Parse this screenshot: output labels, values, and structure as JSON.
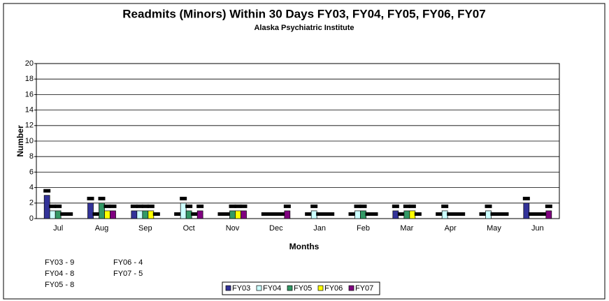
{
  "chart_data": {
    "type": "bar",
    "title": "Readmits (Minors) Within 30 Days FY03, FY04, FY05, FY06, FY07",
    "subtitle": "Alaska Psychiatric Institute",
    "x_label": "Months",
    "y_label": "Number",
    "categories": [
      "Jul",
      "Aug",
      "Sep",
      "Oct",
      "Nov",
      "Dec",
      "Jan",
      "Feb",
      "Mar",
      "Apr",
      "May",
      "Jun"
    ],
    "series": [
      {
        "name": "FY03",
        "color": "#333399",
        "values": [
          3,
          2,
          1,
          0,
          0,
          0,
          0,
          0,
          1,
          0,
          0,
          2
        ]
      },
      {
        "name": "FY04",
        "color": "#ccffff",
        "values": [
          1,
          0,
          1,
          2,
          0,
          0,
          1,
          1,
          0,
          1,
          1,
          0
        ]
      },
      {
        "name": "FY05",
        "color": "#339966",
        "values": [
          1,
          2,
          1,
          1,
          1,
          0,
          0,
          1,
          1,
          0,
          0,
          0
        ]
      },
      {
        "name": "FY06",
        "color": "#ffff00",
        "values": [
          0,
          1,
          1,
          0,
          1,
          0,
          0,
          0,
          1,
          0,
          0,
          0
        ]
      },
      {
        "name": "FY07",
        "color": "#800080",
        "values": [
          0,
          1,
          0,
          1,
          1,
          1,
          0,
          0,
          0,
          0,
          0,
          1
        ]
      }
    ],
    "ylim": [
      0,
      20
    ],
    "yticks": [
      0,
      2,
      4,
      6,
      8,
      10,
      12,
      14,
      16,
      18,
      20
    ],
    "grid": true,
    "summary": [
      "FY03 - 9",
      "FY04 - 8",
      "FY05 - 8",
      "FY06 -      4",
      "FY07 -      5"
    ]
  }
}
